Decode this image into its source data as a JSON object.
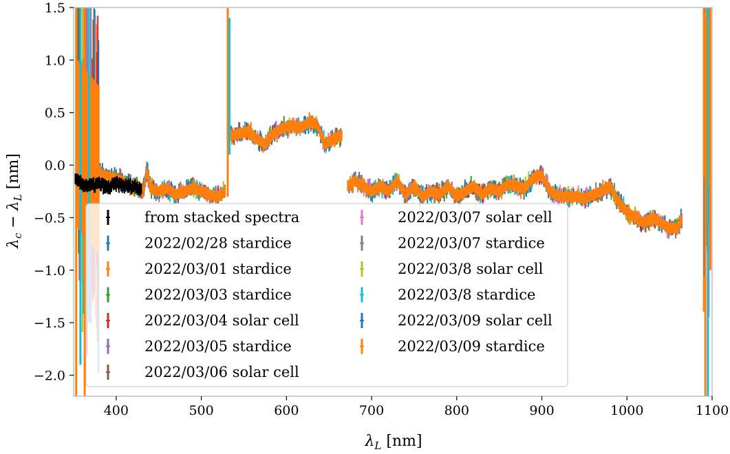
{
  "chart_data": {
    "type": "scatter",
    "xlabel": "λL [nm]",
    "ylabel": "λc − λL [nm]",
    "xlim": [
      350,
      1100
    ],
    "ylim": [
      -2.2,
      1.5
    ],
    "xticks": [
      400,
      500,
      600,
      700,
      800,
      900,
      1000,
      1100
    ],
    "xtick_labels": [
      "400",
      "500",
      "600",
      "700",
      "800",
      "900",
      "1000",
      "1100"
    ],
    "yticks": [
      -2.0,
      -1.5,
      -1.0,
      -0.5,
      0.0,
      0.5,
      1.0,
      1.5
    ],
    "ytick_labels": [
      "−2.0",
      "−1.5",
      "−1.0",
      "−0.5",
      "0.0",
      "0.5",
      "1.0",
      "1.5"
    ],
    "grid": false,
    "legend_position": "lower-left",
    "legend_columns": 2,
    "series": [
      {
        "name": "from stacked spectra",
        "color": "#000000"
      },
      {
        "name": "2022/02/28 stardice",
        "color": "#1f77b4"
      },
      {
        "name": "2022/03/01 stardice",
        "color": "#ff7f0e"
      },
      {
        "name": "2022/03/03 stardice",
        "color": "#2ca02c"
      },
      {
        "name": "2022/03/04 solar cell",
        "color": "#d62728"
      },
      {
        "name": "2022/03/05 stardice",
        "color": "#9467bd"
      },
      {
        "name": "2022/03/06 solar cell",
        "color": "#8c564b"
      },
      {
        "name": "2022/03/07 solar cell",
        "color": "#e377c2"
      },
      {
        "name": "2022/03/07 stardice",
        "color": "#7f7f7f"
      },
      {
        "name": "2022/03/8 solar cell",
        "color": "#bcbd22"
      },
      {
        "name": "2022/03/8 stardice",
        "color": "#17becf"
      },
      {
        "name": "2022/03/09 solar cell",
        "color": "#1f77b4"
      },
      {
        "name": "2022/03/09 stardice",
        "color": "#ff7f0e"
      }
    ],
    "stacked_curve": {
      "x": [
        352,
        360,
        370,
        380,
        390,
        400,
        410,
        420,
        430
      ],
      "y": [
        -0.15,
        -0.18,
        -0.2,
        -0.18,
        -0.22,
        -0.18,
        -0.2,
        -0.2,
        -0.22
      ]
    },
    "residual_curve": [
      {
        "x": [
          355,
          365,
          375,
          385,
          395,
          405,
          415,
          425,
          432,
          436,
          440,
          450,
          460,
          470,
          480,
          490,
          500,
          510,
          520,
          528
        ],
        "y": [
          0.2,
          0.1,
          0.0,
          -0.1,
          -0.12,
          -0.15,
          -0.18,
          -0.22,
          -0.25,
          -0.05,
          -0.22,
          -0.25,
          -0.22,
          -0.28,
          -0.25,
          -0.22,
          -0.25,
          -0.28,
          -0.3,
          -0.25
        ]
      },
      {
        "x": [
          535,
          545,
          555,
          565,
          575,
          585,
          595,
          605,
          615,
          625,
          635,
          645,
          655,
          665
        ],
        "y": [
          0.28,
          0.3,
          0.32,
          0.25,
          0.2,
          0.3,
          0.35,
          0.38,
          0.35,
          0.4,
          0.4,
          0.2,
          0.25,
          0.28
        ]
      },
      {
        "x": [
          672,
          680,
          690,
          700,
          710,
          720,
          730,
          740,
          750,
          760,
          770,
          780,
          790,
          800,
          810,
          820,
          830,
          840,
          850,
          860,
          870,
          880,
          890,
          900,
          910,
          920,
          930,
          940,
          950,
          960,
          970,
          980,
          990,
          1000,
          1010,
          1020,
          1030,
          1040,
          1050,
          1060,
          1065
        ],
        "y": [
          -0.2,
          -0.15,
          -0.2,
          -0.25,
          -0.2,
          -0.25,
          -0.15,
          -0.28,
          -0.2,
          -0.3,
          -0.25,
          -0.28,
          -0.2,
          -0.3,
          -0.25,
          -0.2,
          -0.28,
          -0.22,
          -0.25,
          -0.18,
          -0.2,
          -0.22,
          -0.12,
          -0.1,
          -0.25,
          -0.3,
          -0.3,
          -0.3,
          -0.32,
          -0.28,
          -0.25,
          -0.2,
          -0.35,
          -0.45,
          -0.5,
          -0.55,
          -0.5,
          -0.55,
          -0.6,
          -0.6,
          -0.5
        ]
      },
      {
        "x": [
          1090,
          1093,
          1096,
          1099
        ],
        "y": [
          0.7,
          0.6,
          0.55,
          0.8
        ]
      }
    ]
  }
}
